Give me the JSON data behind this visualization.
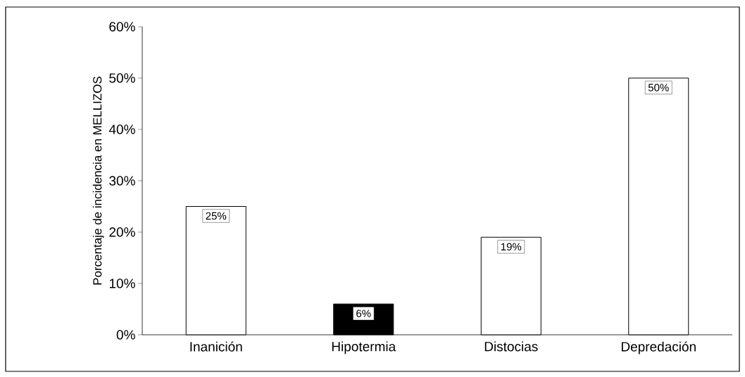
{
  "chart_data": {
    "type": "bar",
    "ylabel": "Porcentaje de incidencia en MELLIZOS",
    "categories": [
      "Inanición",
      "Hipotermia",
      "Distocias",
      "Depredación"
    ],
    "values": [
      25,
      6,
      19,
      50
    ],
    "value_labels": [
      "25%",
      "6%",
      "19%",
      "50%"
    ],
    "colors": [
      "#ffffff",
      "#000000",
      "#ffffff",
      "#ffffff"
    ],
    "ylim": [
      0,
      60
    ],
    "yticks": [
      {
        "value": 0,
        "label": "0%"
      },
      {
        "value": 10,
        "label": "10%"
      },
      {
        "value": 20,
        "label": "20%"
      },
      {
        "value": 30,
        "label": "30%"
      },
      {
        "value": 40,
        "label": "40%"
      },
      {
        "value": 50,
        "label": "50%"
      },
      {
        "value": 60,
        "label": "60%"
      }
    ]
  }
}
